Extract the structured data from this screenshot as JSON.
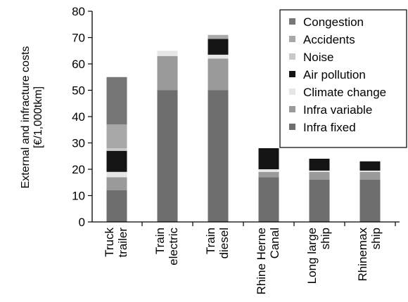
{
  "chart_data": {
    "type": "bar",
    "stacked": true,
    "categories": [
      [
        "Truck",
        "trailer"
      ],
      [
        "Train",
        "electric"
      ],
      [
        "Train",
        "diesel"
      ],
      [
        "Rhine Herne",
        "Canal"
      ],
      [
        "Long large",
        "ship"
      ],
      [
        "Rhinemax",
        "ship"
      ]
    ],
    "ylabel": [
      "External and infracture costs",
      "[€/1,000tkm]"
    ],
    "ylim": [
      0,
      80
    ],
    "yticks": [
      0,
      10,
      20,
      30,
      40,
      50,
      60,
      70,
      80
    ],
    "grid": false,
    "legend_position": "top-right",
    "series": [
      {
        "name": "Infra fixed",
        "color": "#6e6e6e",
        "values": [
          12,
          50,
          50,
          17,
          16,
          16
        ]
      },
      {
        "name": "Infra variable",
        "color": "#9a9a9a",
        "values": [
          5,
          13,
          12,
          2,
          3,
          3
        ]
      },
      {
        "name": "Climate change",
        "color": "#e6e6e6",
        "values": [
          2,
          2,
          1.5,
          1,
          0.5,
          0.5
        ]
      },
      {
        "name": "Air pollution",
        "color": "#141414",
        "values": [
          8,
          0,
          6,
          8,
          4.5,
          3.5
        ]
      },
      {
        "name": "Noise",
        "color": "#c8c8c8",
        "values": [
          1,
          0,
          0,
          0,
          0,
          0
        ]
      },
      {
        "name": "Accidents",
        "color": "#a8a8a8",
        "values": [
          9,
          0,
          1.5,
          0,
          0,
          0
        ]
      },
      {
        "name": "Congestion",
        "color": "#767676",
        "values": [
          18,
          0,
          0,
          0,
          0,
          0
        ]
      }
    ],
    "legend_order": [
      "Congestion",
      "Accidents",
      "Noise",
      "Air pollution",
      "Climate change",
      "Infra variable",
      "Infra fixed"
    ]
  }
}
